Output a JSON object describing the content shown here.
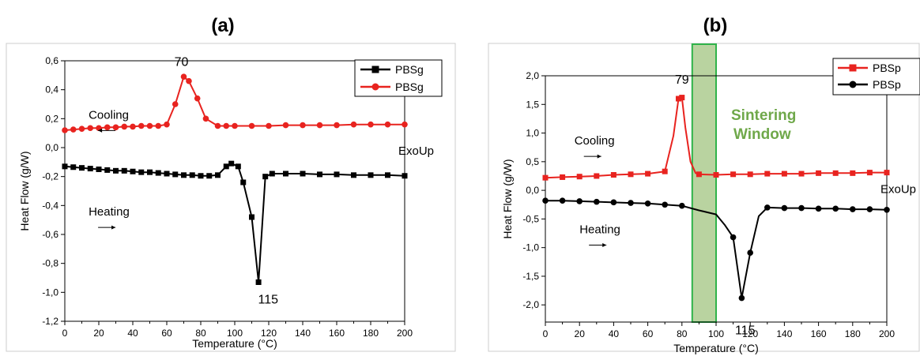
{
  "chart_data": [
    {
      "type": "line",
      "title": "(a)",
      "xlabel": "Temperature (°C)",
      "ylabel": "Heat Flow (g/W)",
      "xlim": [
        0,
        200
      ],
      "ylim": [
        -1.2,
        0.6
      ],
      "xticks": [
        "0",
        "20",
        "40",
        "60",
        "80",
        "100",
        "120",
        "140",
        "160",
        "180",
        "200"
      ],
      "yticks": [
        "-1,2",
        "-1,0",
        "-0,8",
        "-0,6",
        "-0,4",
        "-0,2",
        "0,0",
        "0,2",
        "0,4",
        "0,6"
      ],
      "legend_position": "top-right",
      "grid": false,
      "series": [
        {
          "name": "PBSg",
          "color": "#000000",
          "marker": "square",
          "x": [
            0,
            5,
            10,
            15,
            20,
            25,
            30,
            35,
            40,
            45,
            50,
            55,
            60,
            65,
            70,
            75,
            80,
            85,
            90,
            95,
            98,
            102,
            105,
            110,
            114,
            118,
            122,
            130,
            140,
            150,
            160,
            170,
            180,
            190,
            200
          ],
          "y": [
            -0.13,
            -0.135,
            -0.14,
            -0.145,
            -0.15,
            -0.155,
            -0.16,
            -0.16,
            -0.165,
            -0.17,
            -0.17,
            -0.175,
            -0.18,
            -0.185,
            -0.19,
            -0.19,
            -0.195,
            -0.195,
            -0.19,
            -0.13,
            -0.11,
            -0.13,
            -0.24,
            -0.48,
            -0.93,
            -0.2,
            -0.18,
            -0.18,
            -0.18,
            -0.185,
            -0.185,
            -0.19,
            -0.19,
            -0.19,
            -0.195
          ]
        },
        {
          "name": "PBSg",
          "color": "#e8231f",
          "marker": "circle",
          "x": [
            0,
            5,
            10,
            15,
            20,
            25,
            30,
            35,
            40,
            45,
            50,
            55,
            60,
            65,
            70,
            73,
            78,
            83,
            90,
            95,
            100,
            110,
            120,
            130,
            140,
            150,
            160,
            170,
            180,
            190,
            200
          ],
          "y": [
            0.12,
            0.125,
            0.13,
            0.135,
            0.135,
            0.14,
            0.14,
            0.145,
            0.145,
            0.15,
            0.15,
            0.15,
            0.16,
            0.3,
            0.49,
            0.46,
            0.34,
            0.2,
            0.15,
            0.15,
            0.15,
            0.15,
            0.15,
            0.155,
            0.155,
            0.155,
            0.155,
            0.16,
            0.16,
            0.16,
            0.16
          ]
        }
      ],
      "annotations": [
        {
          "text": "70",
          "x": 70,
          "y": 0.5
        },
        {
          "text": "115",
          "x": 115,
          "y": -0.93
        },
        {
          "text": "Cooling",
          "x": 14,
          "y": 0.2
        },
        {
          "text": "Heating",
          "x": 14,
          "y": -0.47
        },
        {
          "text": "ExoUp",
          "x": 200,
          "y": -0.05
        }
      ]
    },
    {
      "type": "line",
      "title": "(b)",
      "xlabel": "Temperature (°C)",
      "ylabel": "Heat Flow (g/W)",
      "xlim": [
        0,
        200
      ],
      "ylim": [
        -2.3,
        2.0
      ],
      "xticks": [
        "0",
        "20",
        "40",
        "60",
        "80",
        "100",
        "120",
        "140",
        "160",
        "180",
        "200"
      ],
      "yticks": [
        "-2,0",
        "-1,5",
        "-1,0",
        "-0,5",
        "0,0",
        "0,5",
        "1,0",
        "1,5",
        "2,0"
      ],
      "legend_position": "top-right",
      "grid": false,
      "sintering_window": {
        "label_line1": "Sintering",
        "label_line2": "Window",
        "x_start": 86,
        "x_end": 100
      },
      "series": [
        {
          "name": "PBSp",
          "color": "#e8231f",
          "marker": "square",
          "x": [
            0,
            10,
            20,
            30,
            40,
            50,
            60,
            70,
            75,
            78,
            80,
            82,
            85,
            88,
            90,
            100,
            110,
            120,
            130,
            140,
            150,
            160,
            170,
            180,
            190,
            200
          ],
          "y": [
            0.22,
            0.23,
            0.24,
            0.25,
            0.27,
            0.28,
            0.29,
            0.33,
            0.95,
            1.6,
            1.62,
            1.1,
            0.5,
            0.3,
            0.28,
            0.27,
            0.28,
            0.28,
            0.29,
            0.29,
            0.29,
            0.3,
            0.3,
            0.3,
            0.31,
            0.31
          ],
          "marker_indices": [
            0,
            1,
            2,
            3,
            4,
            5,
            6,
            7,
            9,
            10,
            14,
            15,
            16,
            17,
            18,
            19,
            20,
            21,
            22,
            23,
            24,
            25
          ]
        },
        {
          "name": "PBSp",
          "color": "#000000",
          "marker": "circle",
          "x": [
            0,
            10,
            20,
            30,
            40,
            50,
            60,
            70,
            80,
            90,
            100,
            105,
            110,
            115,
            120,
            125,
            130,
            140,
            150,
            160,
            170,
            180,
            190,
            200
          ],
          "y": [
            -0.18,
            -0.18,
            -0.19,
            -0.2,
            -0.21,
            -0.22,
            -0.23,
            -0.25,
            -0.27,
            -0.35,
            -0.42,
            -0.6,
            -0.82,
            -1.88,
            -1.09,
            -0.45,
            -0.3,
            -0.31,
            -0.31,
            -0.32,
            -0.32,
            -0.33,
            -0.33,
            -0.34
          ],
          "marker_indices": [
            0,
            1,
            2,
            3,
            4,
            5,
            6,
            7,
            8,
            12,
            13,
            14,
            16,
            17,
            18,
            19,
            20,
            21,
            22,
            23
          ]
        }
      ],
      "annotations": [
        {
          "text": "79",
          "x": 80,
          "y": 1.75
        },
        {
          "text": "115",
          "x": 117,
          "y": -2.1
        },
        {
          "text": "Cooling",
          "x": 17,
          "y": 0.8
        },
        {
          "text": "Heating",
          "x": 20,
          "y": -0.75
        },
        {
          "text": "ExoUp",
          "x": 200,
          "y": -0.05
        }
      ]
    }
  ]
}
